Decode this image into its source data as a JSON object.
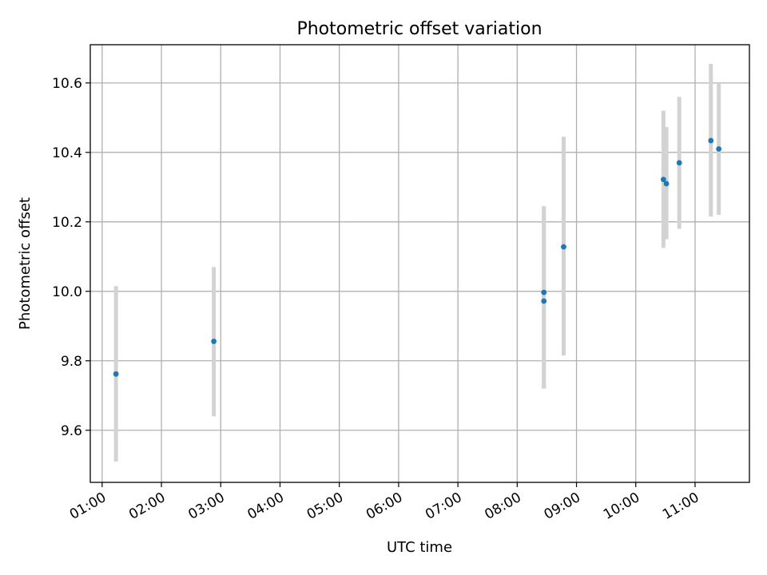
{
  "chart_data": {
    "type": "scatter",
    "title": "Photometric offset variation",
    "xlabel": "UTC time",
    "ylabel": "Photometric offset",
    "x_ticks": [
      "01:00",
      "02:00",
      "03:00",
      "04:00",
      "05:00",
      "06:00",
      "07:00",
      "08:00",
      "09:00",
      "10:00",
      "11:00"
    ],
    "x_range": [
      "00:48",
      "11:55"
    ],
    "y_ticks": [
      "9.6",
      "9.8",
      "10.0",
      "10.2",
      "10.4",
      "10.6"
    ],
    "ylim": [
      9.45,
      10.71
    ],
    "grid": true,
    "points": [
      {
        "x": "01:14",
        "y": 9.762,
        "yerr_low": 9.51,
        "yerr_high": 10.015
      },
      {
        "x": "02:53",
        "y": 9.856,
        "yerr_low": 9.64,
        "yerr_high": 10.07
      },
      {
        "x": "08:27",
        "y": 9.997,
        "yerr_low": 9.72,
        "yerr_high": 10.245
      },
      {
        "x": "08:27",
        "y": 9.972,
        "yerr_low": 9.72,
        "yerr_high": 10.245
      },
      {
        "x": "08:47",
        "y": 10.128,
        "yerr_low": 9.815,
        "yerr_high": 10.445
      },
      {
        "x": "10:28",
        "y": 10.322,
        "yerr_low": 10.125,
        "yerr_high": 10.52
      },
      {
        "x": "10:31",
        "y": 10.31,
        "yerr_low": 10.15,
        "yerr_high": 10.473
      },
      {
        "x": "10:44",
        "y": 10.37,
        "yerr_low": 10.18,
        "yerr_high": 10.56
      },
      {
        "x": "11:16",
        "y": 10.434,
        "yerr_low": 10.215,
        "yerr_high": 10.655
      },
      {
        "x": "11:24",
        "y": 10.41,
        "yerr_low": 10.22,
        "yerr_high": 10.6
      }
    ],
    "colors": {
      "point": "#1f77b4",
      "errorbar": "#d3d3d3",
      "grid": "#b0b0b0"
    }
  }
}
